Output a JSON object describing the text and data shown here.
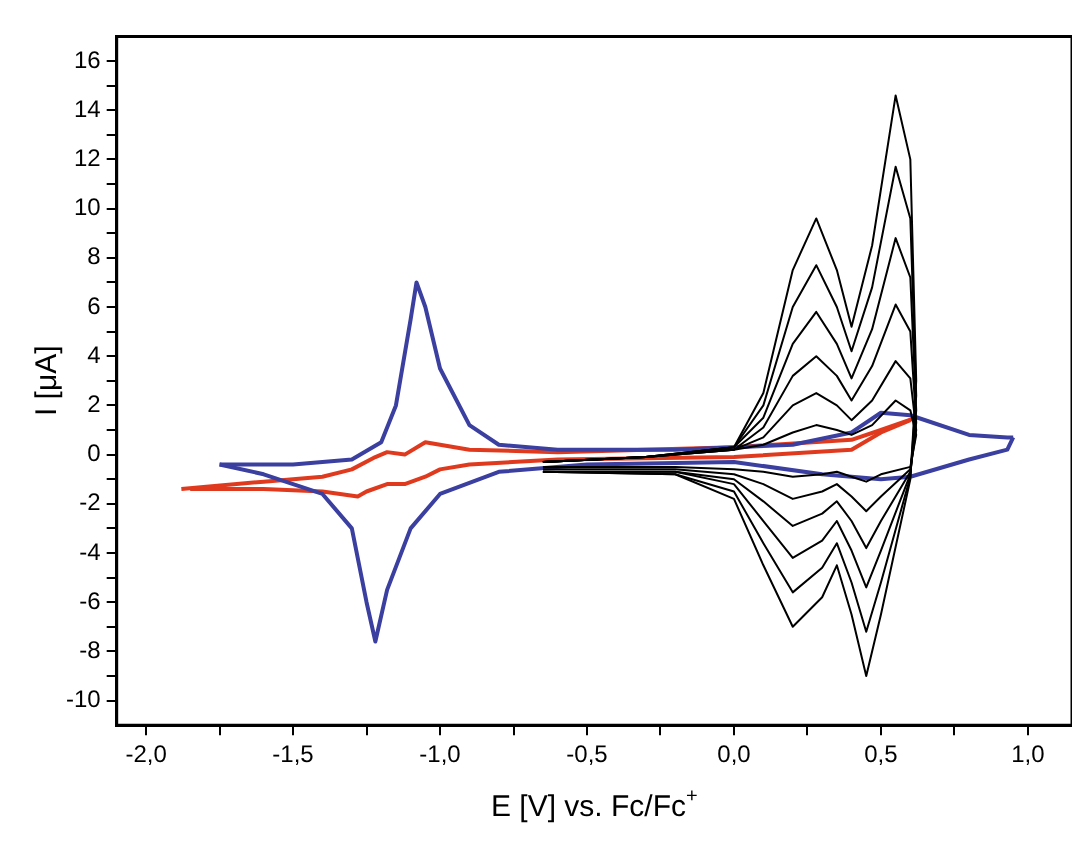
{
  "chart_data": {
    "type": "line",
    "xlabel": "E [V] vs. Fc/Fc$^{+}$",
    "ylabel": "I [μA]",
    "xlim": [
      -2.1,
      1.15
    ],
    "ylim": [
      -11,
      17
    ],
    "xticks": [
      {
        "value": -2,
        "label": "-2,0"
      },
      {
        "value": -1.75,
        "label": null
      },
      {
        "value": -1.5,
        "label": "-1,5"
      },
      {
        "value": -1.25,
        "label": null
      },
      {
        "value": -1,
        "label": "-1,0"
      },
      {
        "value": -0.75,
        "label": null
      },
      {
        "value": -0.5,
        "label": "-0,5"
      },
      {
        "value": -0.25,
        "label": null
      },
      {
        "value": 0,
        "label": "0,0"
      },
      {
        "value": 0.25,
        "label": null
      },
      {
        "value": 0.5,
        "label": "0,5"
      },
      {
        "value": 0.75,
        "label": null
      },
      {
        "value": 1,
        "label": "1,0"
      }
    ],
    "yticks": [
      -10,
      {
        "value": -9,
        "label": null
      },
      -8,
      {
        "value": -7,
        "label": null
      },
      -6,
      {
        "value": -5,
        "label": null
      },
      -4,
      {
        "value": -3,
        "label": null
      },
      -2,
      {
        "value": -1,
        "label": null
      },
      0,
      {
        "value": 1,
        "label": null
      },
      2,
      {
        "value": 3,
        "label": null
      },
      4,
      {
        "value": 5,
        "label": null
      },
      6,
      {
        "value": 7,
        "label": null
      },
      8,
      {
        "value": 9,
        "label": null
      },
      10,
      {
        "value": 11,
        "label": null
      },
      12,
      {
        "value": 13,
        "label": null
      },
      14,
      {
        "value": 15,
        "label": null
      },
      16
    ],
    "grid": false,
    "legend": false,
    "marker": "none",
    "line_style": "solid",
    "series": [
      {
        "color": "#000000",
        "x": [
          -0.65,
          -0.3,
          0,
          0.1,
          0.2,
          0.28,
          0.35,
          0.4,
          0.47,
          0.55,
          0.6,
          0.62,
          0.6,
          0.5,
          0.45,
          0.4,
          0.35,
          0.3,
          0.2,
          0.1,
          0,
          -0.2,
          -0.65
        ],
        "values": [
          -0.3,
          -0.1,
          0.3,
          2.5,
          7.5,
          9.6,
          7.5,
          5.2,
          8.5,
          14.6,
          12,
          3,
          -1,
          -6.5,
          -9,
          -6.5,
          -4.5,
          -5.8,
          -7,
          -4.5,
          -1.8,
          -0.8,
          -0.7
        ]
      },
      {
        "color": "#000000",
        "x": [
          -0.65,
          -0.3,
          0,
          0.1,
          0.2,
          0.28,
          0.35,
          0.4,
          0.47,
          0.55,
          0.6,
          0.62,
          0.6,
          0.5,
          0.45,
          0.4,
          0.35,
          0.3,
          0.2,
          0.1,
          0,
          -0.2,
          -0.65
        ],
        "values": [
          -0.3,
          -0.1,
          0.3,
          2,
          6,
          7.7,
          6,
          4.2,
          6.8,
          11.7,
          9.6,
          2.4,
          -0.9,
          -5.2,
          -7.2,
          -5.2,
          -3.6,
          -4.6,
          -5.6,
          -3.6,
          -1.5,
          -0.8,
          -0.7
        ]
      },
      {
        "color": "#000000",
        "x": [
          -0.65,
          -0.3,
          0,
          0.1,
          0.2,
          0.28,
          0.35,
          0.4,
          0.47,
          0.55,
          0.6,
          0.62,
          0.6,
          0.5,
          0.45,
          0.4,
          0.35,
          0.3,
          0.2,
          0.1,
          0,
          -0.2,
          -0.65
        ],
        "values": [
          -0.3,
          -0.1,
          0.3,
          1.5,
          4.5,
          5.8,
          4.5,
          3.1,
          5.1,
          8.8,
          7.2,
          1.8,
          -0.8,
          -3.9,
          -5.4,
          -3.9,
          -2.7,
          -3.5,
          -4.2,
          -2.7,
          -1.2,
          -0.7,
          -0.7
        ]
      },
      {
        "color": "#000000",
        "x": [
          -0.65,
          -0.3,
          0,
          0.1,
          0.2,
          0.28,
          0.35,
          0.4,
          0.47,
          0.55,
          0.6,
          0.62,
          0.6,
          0.5,
          0.45,
          0.4,
          0.35,
          0.3,
          0.2,
          0.1,
          0,
          -0.2,
          -0.65
        ],
        "values": [
          -0.3,
          -0.1,
          0.2,
          1.1,
          3.2,
          4,
          3.2,
          2.2,
          3.6,
          6.1,
          5,
          1.3,
          -0.7,
          -2.7,
          -3.8,
          -2.7,
          -1.9,
          -2.4,
          -2.9,
          -1.9,
          -1,
          -0.7,
          -0.7
        ]
      },
      {
        "color": "#000000",
        "x": [
          -0.65,
          -0.3,
          0,
          0.1,
          0.2,
          0.28,
          0.35,
          0.4,
          0.47,
          0.55,
          0.6,
          0.62,
          0.6,
          0.5,
          0.45,
          0.4,
          0.35,
          0.3,
          0.2,
          0.1,
          0,
          -0.2,
          -0.65
        ],
        "values": [
          -0.3,
          -0.1,
          0.2,
          0.7,
          2,
          2.5,
          2,
          1.4,
          2.2,
          3.8,
          3.1,
          1,
          -0.6,
          -1.7,
          -2.3,
          -1.7,
          -1.2,
          -1.5,
          -1.8,
          -1.2,
          -0.8,
          -0.6,
          -0.6
        ]
      },
      {
        "color": "#000000",
        "x": [
          -0.65,
          -0.3,
          0,
          0.1,
          0.2,
          0.28,
          0.35,
          0.4,
          0.47,
          0.55,
          0.6,
          0.62,
          0.6,
          0.5,
          0.45,
          0.4,
          0.35,
          0.3,
          0.2,
          0.1,
          0,
          -0.2,
          -0.65
        ],
        "values": [
          -0.3,
          -0.1,
          0.2,
          0.4,
          0.9,
          1.2,
          1,
          0.8,
          1.2,
          2.2,
          1.8,
          0.8,
          -0.5,
          -0.8,
          -1.1,
          -0.9,
          -0.7,
          -0.8,
          -0.9,
          -0.7,
          -0.6,
          -0.5,
          -0.5
        ]
      },
      {
        "color": "#3a3fa0",
        "x": [
          -1.75,
          -1.5,
          -1.3,
          -1.2,
          -1.15,
          -1.1,
          -1.08,
          -1.05,
          -1,
          -0.9,
          -0.8,
          -0.6,
          -0.2,
          0.2,
          0.4,
          0.5,
          0.6,
          0.8,
          0.93,
          0.95
        ],
        "values": [
          -0.4,
          -0.4,
          -0.2,
          0.5,
          2,
          5.5,
          7,
          6,
          3.5,
          1.2,
          0.4,
          0.2,
          0.2,
          0.4,
          0.9,
          1.7,
          1.6,
          0.8,
          0.7,
          0.7
        ]
      },
      {
        "color": "#3a3fa0",
        "x": [
          0.95,
          0.93,
          0.8,
          0.6,
          0.5,
          0.3,
          0,
          -0.5,
          -0.8,
          -1,
          -1.1,
          -1.18,
          -1.22,
          -1.25,
          -1.3,
          -1.4,
          -1.6,
          -1.75
        ],
        "values": [
          0.7,
          0.2,
          -0.2,
          -0.9,
          -1,
          -0.8,
          -0.3,
          -0.4,
          -0.7,
          -1.6,
          -3,
          -5.5,
          -7.6,
          -6,
          -3,
          -1.6,
          -0.8,
          -0.4
        ]
      },
      {
        "color": "#e03a1e",
        "x": [
          -1.88,
          -1.6,
          -1.4,
          -1.3,
          -1.22,
          -1.18,
          -1.12,
          -1.05,
          -1,
          -0.9,
          -0.6,
          0,
          0.4,
          0.5,
          0.62
        ],
        "values": [
          -1.4,
          -1.1,
          -0.9,
          -0.6,
          -0.1,
          0.1,
          0,
          0.5,
          0.4,
          0.2,
          0.1,
          0.3,
          0.6,
          1,
          1.5
        ]
      },
      {
        "color": "#e03a1e",
        "x": [
          0.6,
          0.5,
          0.4,
          0,
          -0.6,
          -0.9,
          -1,
          -1.05,
          -1.12,
          -1.18,
          -1.25,
          -1.28,
          -1.4,
          -1.6,
          -1.85
        ],
        "values": [
          1.4,
          0.9,
          0.2,
          -0.1,
          -0.2,
          -0.4,
          -0.6,
          -0.9,
          -1.2,
          -1.2,
          -1.5,
          -1.7,
          -1.5,
          -1.4,
          -1.4
        ]
      }
    ]
  }
}
